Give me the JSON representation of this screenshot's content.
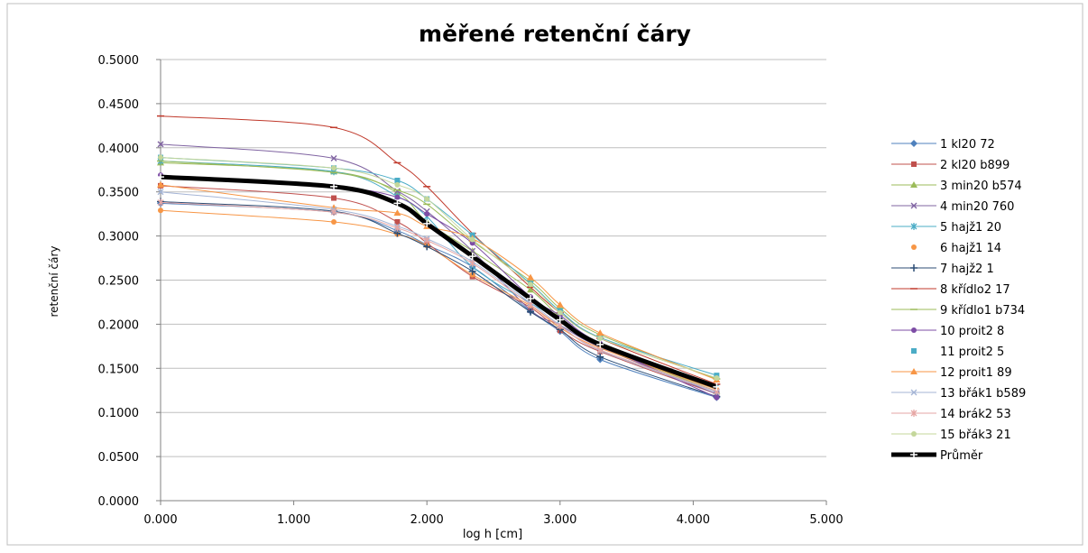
{
  "chart_data": {
    "type": "line",
    "title": "měřené retenční čáry",
    "xlabel": "log h  [cm]",
    "ylabel": "retenční čáry",
    "xlim": [
      0,
      5
    ],
    "ylim": [
      0,
      0.5
    ],
    "x_ticks": [
      "0.000",
      "1.000",
      "2.000",
      "3.000",
      "4.000",
      "5.000"
    ],
    "y_ticks": [
      "0.0000",
      "0.0500",
      "0.1000",
      "0.1500",
      "0.2000",
      "0.2500",
      "0.3000",
      "0.3500",
      "0.4000",
      "0.4500",
      "0.5000"
    ],
    "x": [
      0.0,
      1.301,
      1.778,
      2.0,
      2.342,
      2.778,
      3.0,
      3.301,
      4.176
    ],
    "grid": "horizontal",
    "legend_position": "right",
    "series": [
      {
        "name": "1 kl20 72",
        "color": "#4f81bd",
        "marker": "diamond",
        "values": [
          0.337,
          0.327,
          0.306,
          0.29,
          0.265,
          0.215,
          0.192,
          0.16,
          0.117
        ]
      },
      {
        "name": "2 kl20 b899",
        "color": "#c0504d",
        "marker": "square",
        "values": [
          0.357,
          0.343,
          0.316,
          0.292,
          0.254,
          0.219,
          0.193,
          0.169,
          0.121
        ]
      },
      {
        "name": "3 min20 b574",
        "color": "#9bbb59",
        "marker": "triangle",
        "values": [
          0.383,
          0.373,
          0.349,
          0.316,
          0.283,
          0.239,
          0.208,
          0.175,
          0.124
        ]
      },
      {
        "name": "4 min20 760",
        "color": "#8064a2",
        "marker": "x",
        "values": [
          0.404,
          0.388,
          0.351,
          0.328,
          0.283,
          0.216,
          0.199,
          0.174,
          0.121
        ]
      },
      {
        "name": "5 hajž1 20",
        "color": "#4bacc6",
        "marker": "star",
        "values": [
          0.385,
          0.373,
          0.345,
          0.322,
          0.265,
          0.224,
          0.205,
          0.176,
          0.129
        ]
      },
      {
        "name": "6 hajž1 14",
        "color": "#f79646",
        "marker": "circle",
        "values": [
          0.329,
          0.316,
          0.302,
          0.289,
          0.256,
          0.221,
          0.196,
          0.173,
          0.126
        ]
      },
      {
        "name": "7 hajž2 1",
        "color": "#2c4d75",
        "marker": "plus",
        "values": [
          0.339,
          0.328,
          0.303,
          0.288,
          0.26,
          0.214,
          0.194,
          0.163,
          0.118
        ]
      },
      {
        "name": "8 křídlo2 17",
        "color": "#c0392b",
        "marker": "dash",
        "values": [
          0.436,
          0.423,
          0.383,
          0.356,
          0.303,
          0.242,
          0.213,
          0.184,
          0.132
        ]
      },
      {
        "name": "9 křídlo1 b734",
        "color": "#9bbb59",
        "marker": "dash",
        "values": [
          0.385,
          0.372,
          0.352,
          0.336,
          0.294,
          0.249,
          0.218,
          0.188,
          0.138
        ]
      },
      {
        "name": "10 proit2 8",
        "color": "#7d4ca5",
        "marker": "circle",
        "values": [
          0.369,
          0.356,
          0.344,
          0.325,
          0.292,
          0.231,
          0.21,
          0.178,
          0.117
        ]
      },
      {
        "name": "11 proit2 5",
        "color": "#4bacc6",
        "marker": "square",
        "values": [
          0.389,
          0.377,
          0.363,
          0.342,
          0.301,
          0.246,
          0.215,
          0.185,
          0.142
        ]
      },
      {
        "name": "12 proit1 89",
        "color": "#f79646",
        "marker": "triangle",
        "values": [
          0.358,
          0.332,
          0.326,
          0.311,
          0.297,
          0.253,
          0.222,
          0.19,
          0.137
        ]
      },
      {
        "name": "13 břák1 b589",
        "color": "#a5b5d6",
        "marker": "x",
        "values": [
          0.35,
          0.33,
          0.311,
          0.297,
          0.271,
          0.224,
          0.199,
          0.17,
          0.123
        ]
      },
      {
        "name": "14 brák2 53",
        "color": "#e6a6a4",
        "marker": "star",
        "values": [
          0.338,
          0.327,
          0.309,
          0.295,
          0.269,
          0.222,
          0.198,
          0.171,
          0.124
        ]
      },
      {
        "name": "15 břák3 21",
        "color": "#c4d79b",
        "marker": "circle",
        "values": [
          0.389,
          0.377,
          0.358,
          0.342,
          0.296,
          0.245,
          0.213,
          0.184,
          0.139
        ]
      },
      {
        "name": "Průměr",
        "color": "#000000",
        "marker": "plus",
        "thick": true,
        "values": [
          0.367,
          0.356,
          0.337,
          0.314,
          0.277,
          0.229,
          0.205,
          0.177,
          0.129
        ]
      }
    ]
  }
}
